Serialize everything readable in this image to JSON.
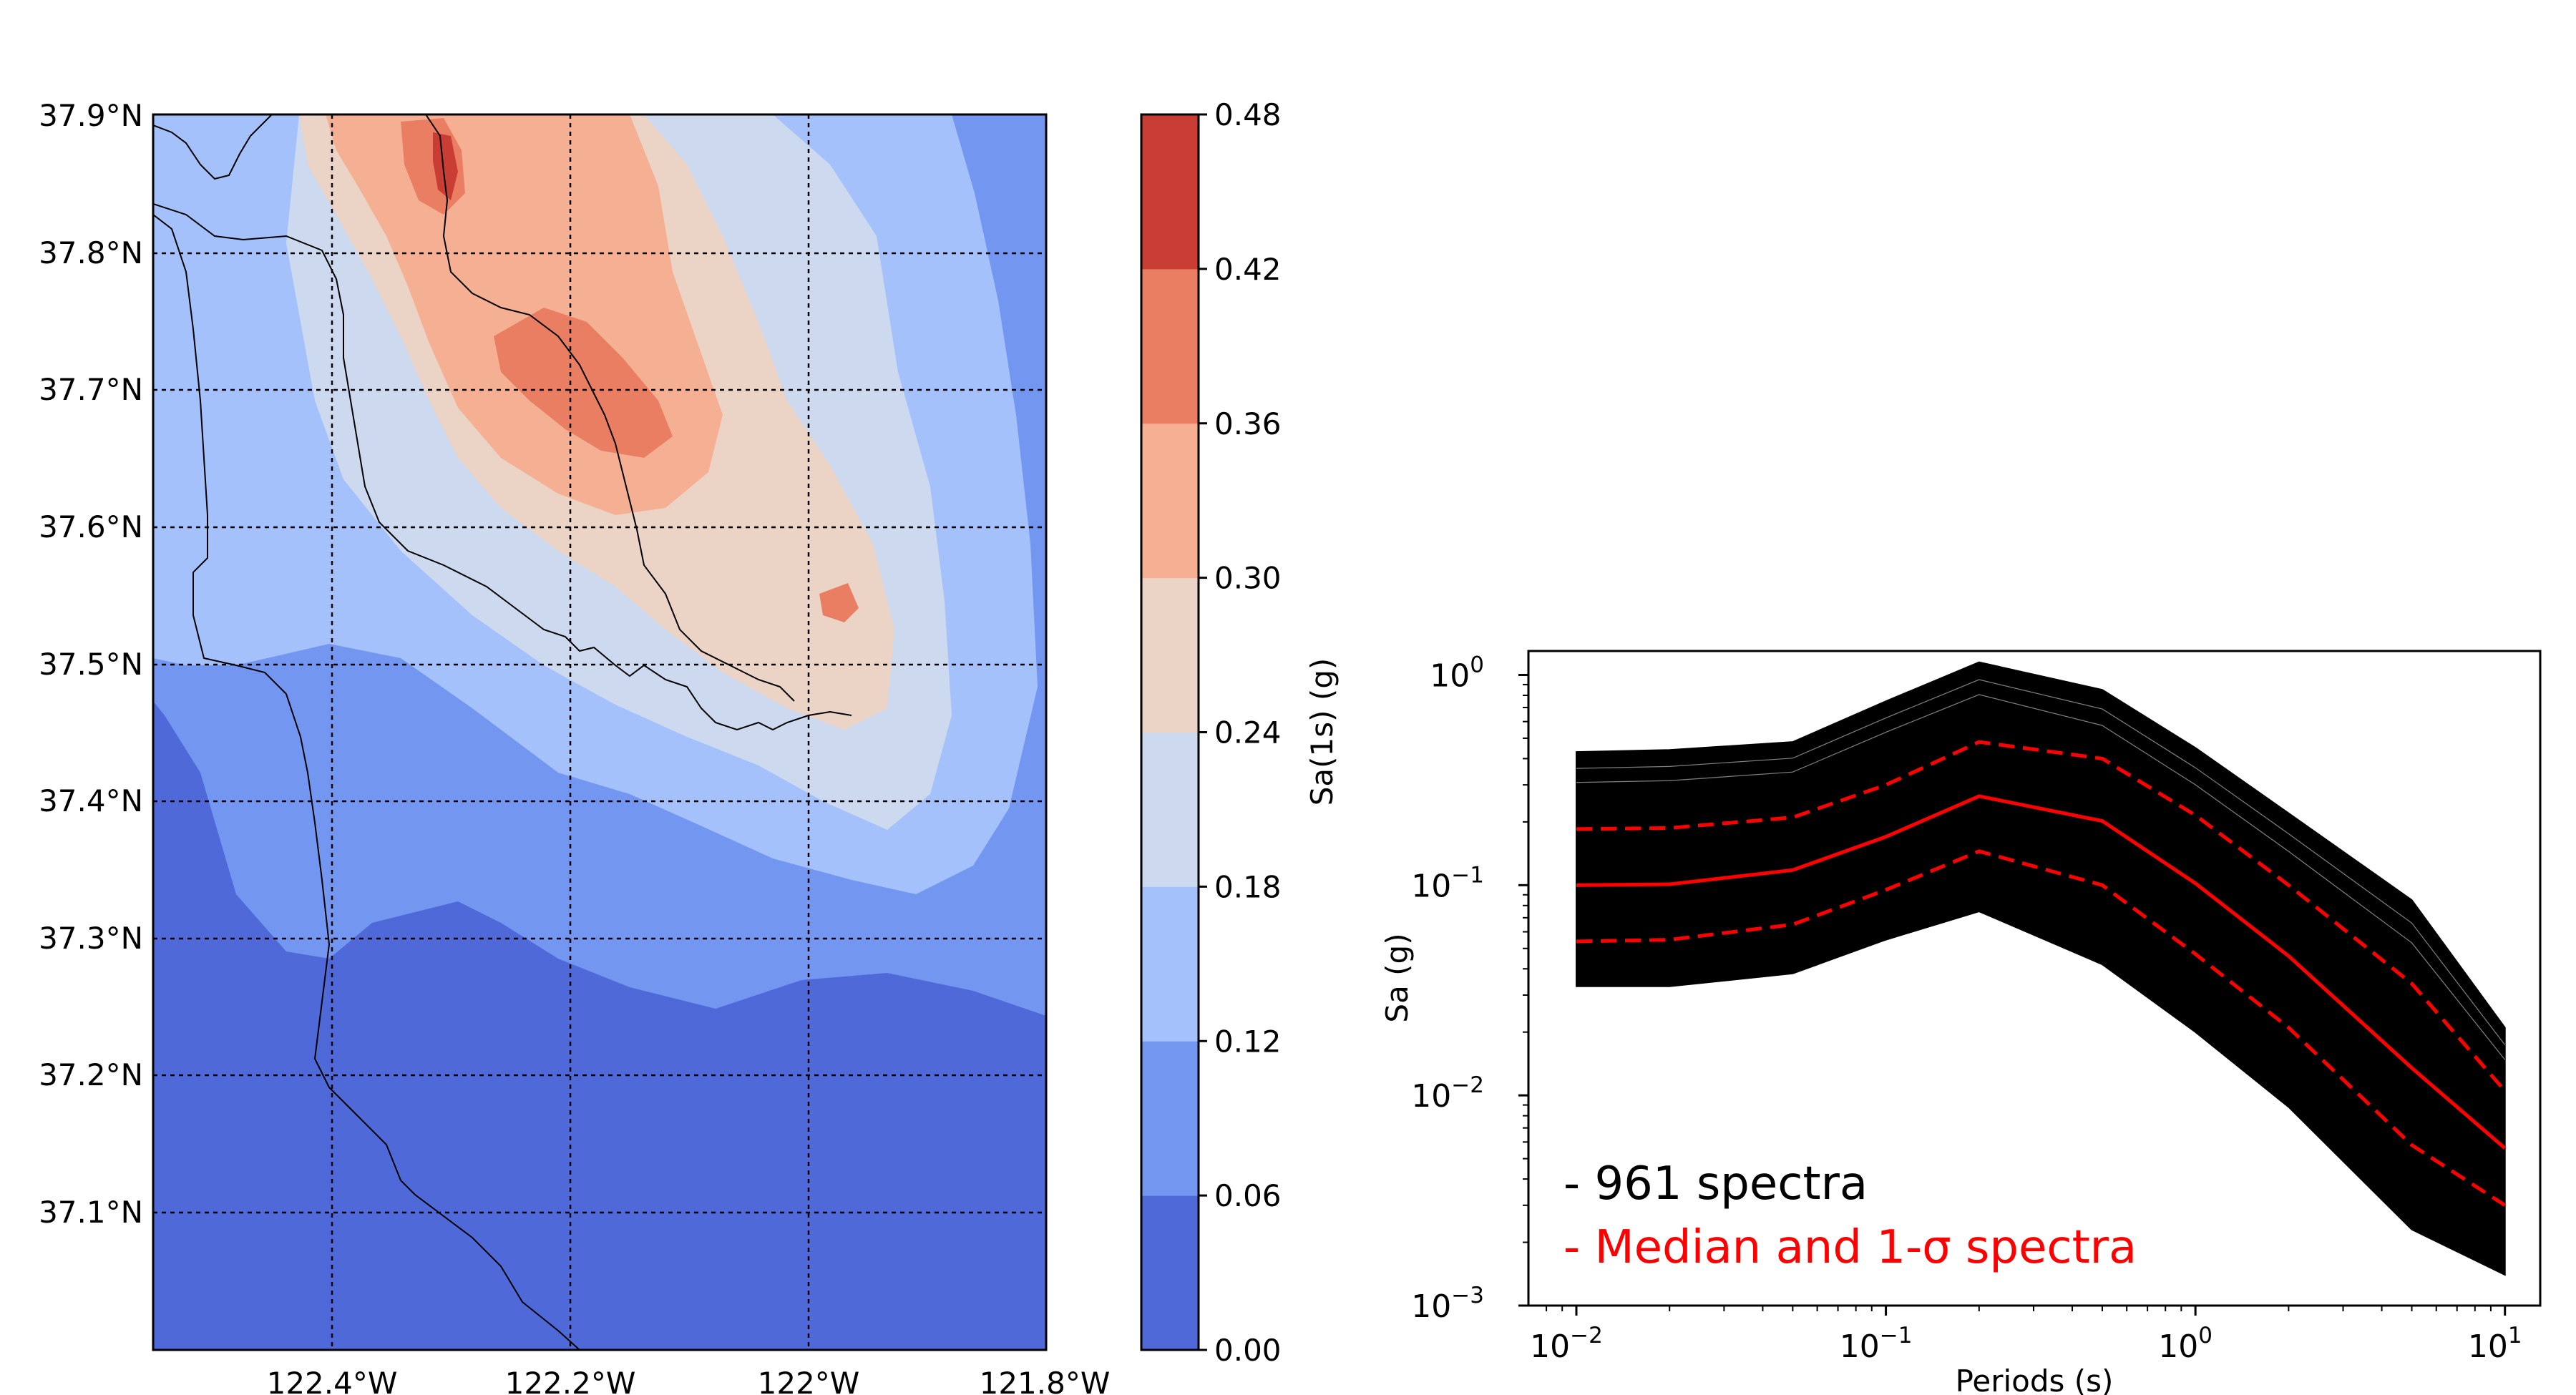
{
  "chart_data": [
    {
      "type": "heatmap",
      "subtype": "filled-contour map",
      "xlabel": "",
      "ylabel": "",
      "x_ticks": [
        "122.4°W",
        "122.2°W",
        "122°W",
        "121.8°W"
      ],
      "x_tick_values": [
        -122.4,
        -122.2,
        -122.0,
        -121.8
      ],
      "y_ticks": [
        "37.9°N",
        "37.8°N",
        "37.7°N",
        "37.6°N",
        "37.5°N",
        "37.4°N",
        "37.3°N",
        "37.2°N",
        "37.1°N"
      ],
      "y_tick_values": [
        37.9,
        37.8,
        37.7,
        37.6,
        37.5,
        37.4,
        37.3,
        37.2,
        37.1
      ],
      "xlim": [
        -122.55,
        -121.8
      ],
      "ylim": [
        37.0,
        37.9
      ],
      "grid": true,
      "colorbar": {
        "label": "Sa(1s) (g)",
        "levels": [
          0.0,
          0.06,
          0.12,
          0.18,
          0.24,
          0.3,
          0.36,
          0.42,
          0.48
        ],
        "tick_labels": [
          "0.00",
          "0.06",
          "0.12",
          "0.18",
          "0.24",
          "0.30",
          "0.36",
          "0.42",
          "0.48"
        ],
        "colors": [
          "#4f6ad8",
          "#7396f1",
          "#a5c1fb",
          "#ccd9ee",
          "#ebd3c6",
          "#f5b093",
          "#e97e62",
          "#c93d35"
        ]
      },
      "peak": {
        "lon": -122.21,
        "lat": 37.72,
        "value": 0.4
      },
      "ridge_axis": [
        [
          -122.32,
          37.88
        ],
        [
          -122.21,
          37.72
        ],
        [
          -122.12,
          37.6
        ],
        [
          -121.98,
          37.5
        ]
      ]
    },
    {
      "type": "line",
      "xlabel": "Periods (s)",
      "ylabel": "Sa (g)",
      "xscale": "log",
      "yscale": "log",
      "xlim": [
        0.007,
        13
      ],
      "ylim": [
        0.001,
        1.3
      ],
      "x_ticks": [
        0.01,
        0.1,
        1,
        10
      ],
      "y_ticks": [
        0.001,
        0.01,
        0.1,
        1
      ],
      "x": [
        0.01,
        0.02,
        0.05,
        0.1,
        0.2,
        0.5,
        1,
        2,
        5,
        10
      ],
      "series": [
        {
          "name": "Median and 1-σ spectra",
          "role": "median",
          "color": "#ff0000",
          "style": "solid",
          "values": [
            0.1,
            0.101,
            0.118,
            0.17,
            0.265,
            0.202,
            0.102,
            0.046,
            0.0135,
            0.0056
          ]
        },
        {
          "role": "+1 sigma",
          "color": "#ff0000",
          "style": "dashed",
          "values": [
            0.185,
            0.187,
            0.21,
            0.3,
            0.48,
            0.4,
            0.215,
            0.1,
            0.034,
            0.0105
          ]
        },
        {
          "role": "-1 sigma",
          "color": "#ff0000",
          "style": "dashed",
          "values": [
            0.054,
            0.055,
            0.065,
            0.095,
            0.145,
            0.1,
            0.047,
            0.021,
            0.0058,
            0.003
          ]
        }
      ],
      "envelope": {
        "name": "961 spectra",
        "count": 961,
        "color": "#000000",
        "upper": [
          0.43,
          0.44,
          0.48,
          0.75,
          1.15,
          0.85,
          0.45,
          0.22,
          0.085,
          0.021
        ],
        "lower": [
          0.033,
          0.033,
          0.038,
          0.055,
          0.075,
          0.042,
          0.02,
          0.0088,
          0.0023,
          0.0014
        ]
      },
      "legend": {
        "placement": "lower-left",
        "entries": [
          {
            "text": "- 961 spectra",
            "color": "#000000"
          },
          {
            "text": "- Median and 1-σ spectra",
            "color": "#ff0000"
          }
        ]
      }
    }
  ]
}
